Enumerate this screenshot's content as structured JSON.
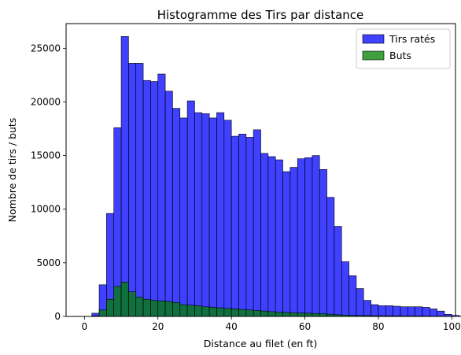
{
  "chart_data": {
    "type": "histogram",
    "title": "Histogramme des Tirs par distance",
    "xlabel": "Distance au filet (en ft)",
    "ylabel": "Nombre de tirs / buts",
    "xlim": [
      -5,
      101
    ],
    "ylim": [
      0,
      27300
    ],
    "xticks": [
      0,
      20,
      40,
      60,
      80,
      100
    ],
    "yticks": [
      0,
      5000,
      10000,
      15000,
      20000,
      25000
    ],
    "ytick_labels": [
      "0",
      "5000",
      "10000",
      "15000",
      "20000",
      "25000"
    ],
    "legend_position": "top-right",
    "grid": false,
    "bin_start": 2,
    "bin_width": 2,
    "series": [
      {
        "name": "Tirs ratés",
        "color": "#0000ff",
        "alpha": 0.75,
        "values": [
          300,
          2950,
          9600,
          17600,
          26100,
          23600,
          23600,
          22000,
          21900,
          22600,
          21000,
          19400,
          18500,
          20100,
          19000,
          18900,
          18500,
          19000,
          18300,
          16800,
          17000,
          16700,
          17400,
          15200,
          14900,
          14600,
          13500,
          13900,
          14700,
          14800,
          15000,
          13700,
          11100,
          8400,
          5100,
          3800,
          2600,
          1500,
          1100,
          1000,
          1000,
          950,
          900,
          900,
          900,
          850,
          700,
          500,
          200,
          100,
          30
        ]
      },
      {
        "name": "Buts",
        "color": "#008000",
        "alpha": 0.75,
        "values": [
          50,
          600,
          1600,
          2800,
          3200,
          2300,
          1800,
          1600,
          1500,
          1450,
          1400,
          1300,
          1100,
          1050,
          1000,
          900,
          850,
          800,
          750,
          700,
          650,
          600,
          550,
          500,
          450,
          400,
          380,
          350,
          320,
          300,
          280,
          260,
          200,
          160,
          120,
          100,
          90,
          80,
          70,
          60,
          60,
          55,
          50,
          50,
          45,
          40,
          35,
          30,
          20,
          10,
          5
        ]
      }
    ]
  }
}
